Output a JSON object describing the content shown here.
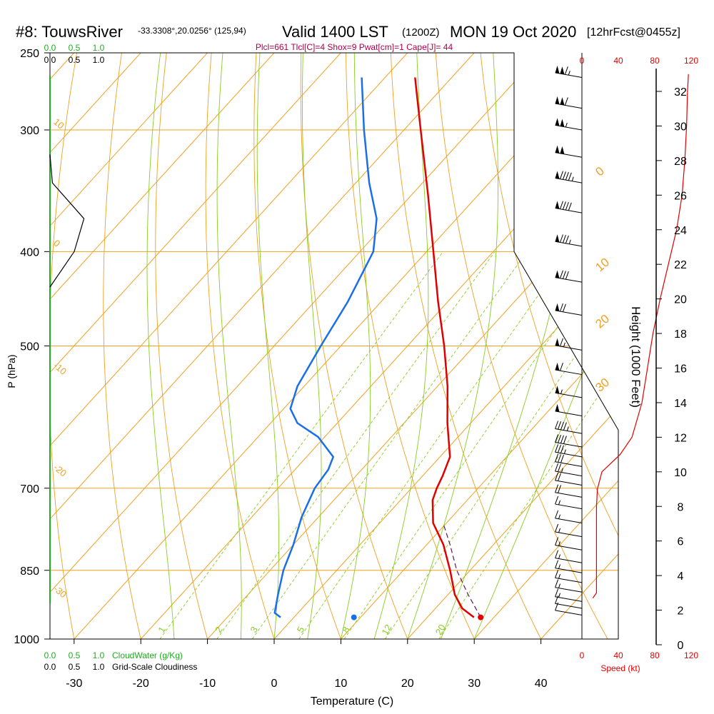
{
  "title": {
    "station": "#8: TouwsRiver",
    "coords": "-33.3308°,20.0256° (125,94)",
    "valid": "Valid 1400 LST",
    "zulu": "(1200Z)",
    "date": "MON 19 Oct 2020",
    "forecast": "[12hrFcst@0455z]"
  },
  "indices": "Plcl=661 Tlcl[C]=4 Shox=9 Pwat[cm]=1 Cape[J]= 44",
  "colors": {
    "temperature": "#e00000",
    "dewpoint": "#1a6fe8",
    "isotherm": "#f0a020",
    "dry_adiabat": "#f0a020",
    "moist_adiabat": "#88cc22",
    "mixing_ratio": "#88cc22",
    "wind_speed": "#e00000",
    "cloud_water": "#22aa22"
  },
  "chart_data": {
    "type": "skew-t",
    "xlabel": "Temperature (C)",
    "ylabel": "P (hPa)",
    "xlim": [
      -35,
      45
    ],
    "ylim": [
      1000,
      250
    ],
    "x_ticks": [
      "-30",
      "-20",
      "-10",
      "0",
      "10",
      "20",
      "30",
      "40"
    ],
    "x_tick_values": [
      -30,
      -20,
      -10,
      0,
      10,
      20,
      30,
      40
    ],
    "pressure_levels": [
      250,
      300,
      400,
      500,
      700,
      850,
      1000
    ],
    "pressure_labels": [
      "250",
      "300",
      "400",
      "500",
      "700",
      "850",
      "1000"
    ],
    "isotherms": [
      -110,
      -100,
      -90,
      -80,
      -70,
      -60,
      -50,
      -40,
      -30,
      -20,
      -10,
      0,
      10,
      20,
      30,
      40
    ],
    "dry_adiabats_C": [
      -30,
      -20,
      -10,
      0,
      10,
      20,
      30,
      40,
      50,
      60,
      70,
      80,
      90,
      100,
      110,
      120
    ],
    "moist_adiabats_C": [
      -15,
      -5,
      0,
      5,
      10,
      15,
      20,
      25,
      30
    ],
    "mixing_ratios": [
      1,
      2,
      3,
      5,
      8,
      12,
      20
    ],
    "mixing_ratio_labels": [
      "1",
      "2",
      "3",
      "5",
      "8",
      "12",
      "20"
    ],
    "theta_labels": [
      {
        "text": "10",
        "p": 295,
        "t": -37
      },
      {
        "text": "0",
        "p": 393,
        "t": -34
      },
      {
        "text": "-10",
        "p": 525,
        "t": -35
      },
      {
        "text": "-20",
        "p": 668,
        "t": -34.5
      },
      {
        "text": "-30",
        "p": 890,
        "t": -33
      }
    ],
    "wetbulb_labels": [
      {
        "text": "0",
        "p": 335,
        "t": -4
      },
      {
        "text": "10",
        "p": 420,
        "t": 4
      },
      {
        "text": "20",
        "p": 480,
        "t": 14
      },
      {
        "text": "30",
        "p": 558,
        "t": 23
      }
    ],
    "temperature_profile": [
      {
        "p": 950,
        "t": 27
      },
      {
        "p": 930,
        "t": 24
      },
      {
        "p": 900,
        "t": 21
      },
      {
        "p": 850,
        "t": 17
      },
      {
        "p": 800,
        "t": 12.5
      },
      {
        "p": 760,
        "t": 8
      },
      {
        "p": 720,
        "t": 4.8
      },
      {
        "p": 700,
        "t": 3.8
      },
      {
        "p": 680,
        "t": 3.0
      },
      {
        "p": 650,
        "t": 1.5
      },
      {
        "p": 600,
        "t": -3.5
      },
      {
        "p": 550,
        "t": -8.5
      },
      {
        "p": 500,
        "t": -14.5
      },
      {
        "p": 450,
        "t": -21.5
      },
      {
        "p": 400,
        "t": -29
      },
      {
        "p": 350,
        "t": -37.5
      },
      {
        "p": 300,
        "t": -47.5
      },
      {
        "p": 265,
        "t": -55.5
      }
    ],
    "dewpoint_profile": [
      {
        "p": 950,
        "t": -2
      },
      {
        "p": 940,
        "t": -3.5
      },
      {
        "p": 900,
        "t": -5.5
      },
      {
        "p": 850,
        "t": -8
      },
      {
        "p": 800,
        "t": -10
      },
      {
        "p": 750,
        "t": -12.5
      },
      {
        "p": 700,
        "t": -14.5
      },
      {
        "p": 670,
        "t": -15
      },
      {
        "p": 650,
        "t": -16
      },
      {
        "p": 620,
        "t": -21
      },
      {
        "p": 600,
        "t": -26
      },
      {
        "p": 580,
        "t": -29
      },
      {
        "p": 550,
        "t": -31
      },
      {
        "p": 500,
        "t": -33
      },
      {
        "p": 450,
        "t": -35
      },
      {
        "p": 400,
        "t": -38
      },
      {
        "p": 370,
        "t": -42
      },
      {
        "p": 340,
        "t": -48
      },
      {
        "p": 300,
        "t": -56
      },
      {
        "p": 265,
        "t": -63.5
      }
    ],
    "parcel_path": [
      {
        "p": 950,
        "t": 28
      },
      {
        "p": 900,
        "t": 23
      },
      {
        "p": 850,
        "t": 18
      },
      {
        "p": 800,
        "t": 13.5
      },
      {
        "p": 760,
        "t": 9.5
      }
    ],
    "surface_temperature": {
      "p": 950,
      "t": 28
    },
    "surface_dewpoint": {
      "p": 950,
      "t": 9
    },
    "height_axis": {
      "label": "Height (1000 Feet)",
      "ticks": [
        0,
        2,
        4,
        6,
        8,
        10,
        12,
        14,
        16,
        18,
        20,
        22,
        24,
        26,
        28,
        30,
        32
      ],
      "tick_labels": [
        "0",
        "2",
        "4",
        "6",
        "8",
        "10",
        "12",
        "14",
        "16",
        "18",
        "20",
        "22",
        "24",
        "26",
        "28",
        "30",
        "32"
      ]
    },
    "wind_speed_axis": {
      "label": "Speed (kt)",
      "ticks": [
        "0",
        "40",
        "80",
        "120"
      ],
      "tick_values": [
        0,
        40,
        80,
        120
      ]
    },
    "wind_speed_profile": [
      {
        "ft": 2700,
        "kt": 12
      },
      {
        "ft": 3000,
        "kt": 16
      },
      {
        "ft": 4000,
        "kt": 16
      },
      {
        "ft": 6000,
        "kt": 16
      },
      {
        "ft": 8000,
        "kt": 16
      },
      {
        "ft": 9000,
        "kt": 17
      },
      {
        "ft": 10000,
        "kt": 22
      },
      {
        "ft": 11000,
        "kt": 42
      },
      {
        "ft": 12000,
        "kt": 55
      },
      {
        "ft": 14000,
        "kt": 66
      },
      {
        "ft": 16000,
        "kt": 72
      },
      {
        "ft": 18000,
        "kt": 78
      },
      {
        "ft": 20000,
        "kt": 86
      },
      {
        "ft": 22000,
        "kt": 95
      },
      {
        "ft": 24000,
        "kt": 104
      },
      {
        "ft": 26000,
        "kt": 110
      },
      {
        "ft": 28000,
        "kt": 113
      },
      {
        "ft": 30000,
        "kt": 115
      },
      {
        "ft": 32000,
        "kt": 116
      },
      {
        "ft": 33000,
        "kt": 117
      }
    ],
    "wind_barbs": [
      {
        "p": 265,
        "kt": 115
      },
      {
        "p": 285,
        "kt": 110
      },
      {
        "p": 300,
        "kt": 105
      },
      {
        "p": 320,
        "kt": 100
      },
      {
        "p": 340,
        "kt": 95
      },
      {
        "p": 365,
        "kt": 90
      },
      {
        "p": 395,
        "kt": 85
      },
      {
        "p": 430,
        "kt": 78
      },
      {
        "p": 465,
        "kt": 72
      },
      {
        "p": 505,
        "kt": 66
      },
      {
        "p": 535,
        "kt": 60
      },
      {
        "p": 565,
        "kt": 55
      },
      {
        "p": 590,
        "kt": 50
      },
      {
        "p": 615,
        "kt": 45
      },
      {
        "p": 635,
        "kt": 40
      },
      {
        "p": 650,
        "kt": 35
      },
      {
        "p": 665,
        "kt": 30
      },
      {
        "p": 680,
        "kt": 25
      },
      {
        "p": 695,
        "kt": 20
      },
      {
        "p": 715,
        "kt": 18
      },
      {
        "p": 735,
        "kt": 16
      },
      {
        "p": 760,
        "kt": 15
      },
      {
        "p": 785,
        "kt": 15
      },
      {
        "p": 810,
        "kt": 15
      },
      {
        "p": 835,
        "kt": 15
      },
      {
        "p": 855,
        "kt": 15
      },
      {
        "p": 875,
        "kt": 15
      },
      {
        "p": 895,
        "kt": 15
      },
      {
        "p": 915,
        "kt": 14
      },
      {
        "p": 930,
        "kt": 12
      },
      {
        "p": 945,
        "kt": 10
      }
    ],
    "cloud_water_axis": {
      "label": "CloudWater (g/Kg)",
      "ticks": [
        "0.0",
        "0.5",
        "1.0"
      ],
      "tick_values": [
        0,
        0.5,
        1.0
      ]
    },
    "cloudiness_axis": {
      "label": "Grid-Scale Cloudiness",
      "ticks": [
        "0.0",
        "0.5",
        "1.0"
      ],
      "tick_values": [
        0,
        0.5,
        1.0
      ]
    },
    "cloudiness_profile": [
      {
        "p": 318,
        "v": 0.0
      },
      {
        "p": 340,
        "v": 0.05
      },
      {
        "p": 370,
        "v": 0.7
      },
      {
        "p": 400,
        "v": 0.5
      },
      {
        "p": 435,
        "v": 0.0
      }
    ]
  }
}
